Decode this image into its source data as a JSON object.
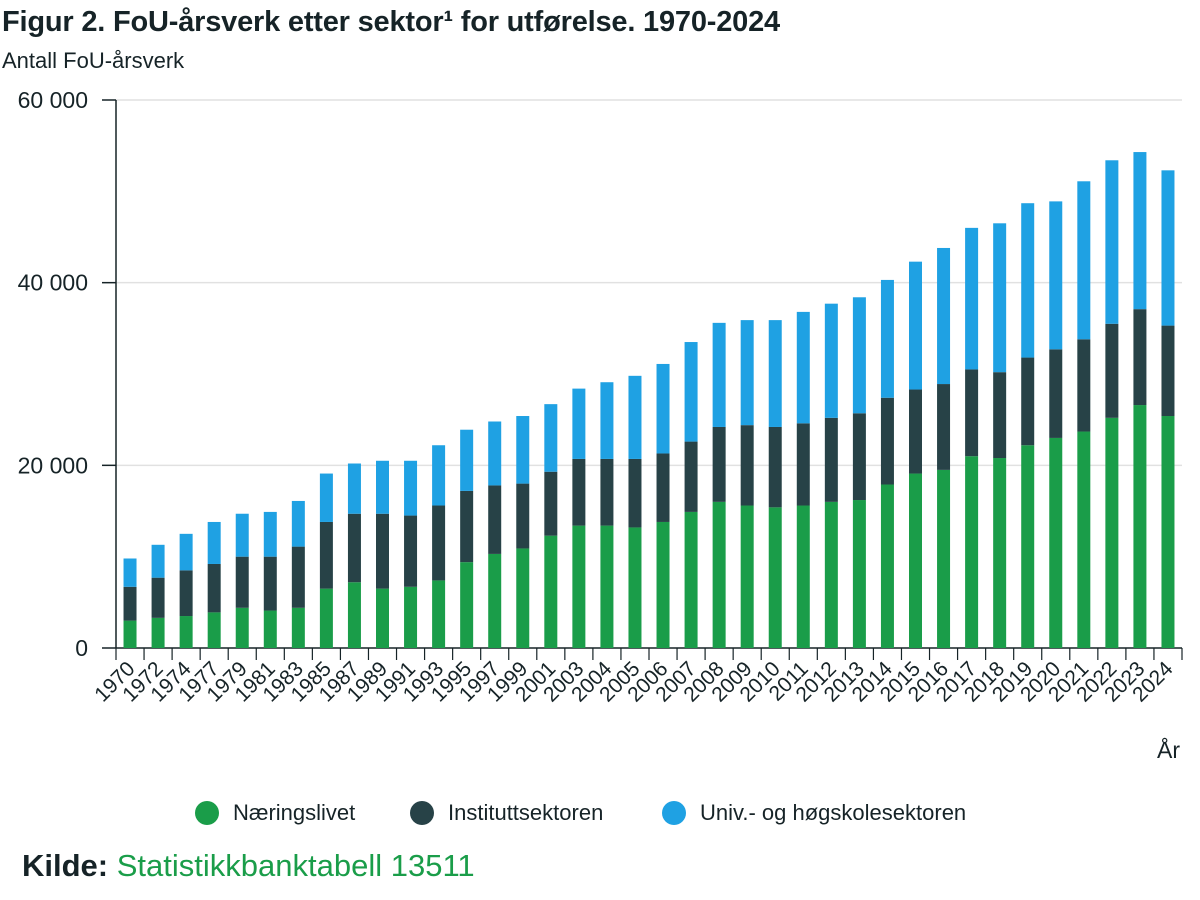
{
  "title": "Figur 2. FoU-årsverk etter sektor¹ for utførelse. 1970-2024",
  "subtitle": "Antall FoU-årsverk",
  "colors": {
    "naeringslivet": "#1a9d49",
    "institutt": "#274247",
    "univ": "#1fa1e3",
    "grid": "#e1e1e1",
    "axis": "#162327"
  },
  "legend": {
    "items": [
      {
        "label": "Næringslivet",
        "color": "#1a9d49"
      },
      {
        "label": "Instituttsektoren",
        "color": "#274247"
      },
      {
        "label": "Univ.- og høgskolesektoren",
        "color": "#1fa1e3"
      }
    ]
  },
  "source": {
    "label": "Kilde:",
    "link": "Statistikkbanktabell 13511"
  },
  "chart_data": {
    "type": "bar",
    "stacked": true,
    "title": "Figur 2. FoU-årsverk etter sektor¹ for utførelse. 1970-2024",
    "xlabel": "År",
    "ylabel": "Antall FoU-årsverk",
    "ylim": [
      0,
      60000
    ],
    "yticks": [
      0,
      20000,
      40000,
      60000
    ],
    "ytick_labels": [
      "0",
      "20 000",
      "40 000",
      "60 000"
    ],
    "grid": true,
    "legend_position": "bottom",
    "categories": [
      "1970",
      "1972",
      "1974",
      "1977",
      "1979",
      "1981",
      "1983",
      "1985",
      "1987",
      "1989",
      "1991",
      "1993",
      "1995",
      "1997",
      "1999",
      "2001",
      "2003",
      "2004",
      "2005",
      "2006",
      "2007",
      "2008",
      "2009",
      "2010",
      "2011",
      "2012",
      "2013",
      "2014",
      "2015",
      "2016",
      "2017",
      "2018",
      "2019",
      "2020",
      "2021",
      "2022",
      "2023",
      "2024"
    ],
    "series": [
      {
        "name": "Næringslivet",
        "values": [
          3000,
          3300,
          3500,
          3900,
          4400,
          4100,
          4400,
          6500,
          7200,
          6500,
          6700,
          7400,
          9400,
          10300,
          10900,
          12300,
          13400,
          13400,
          13200,
          13800,
          14900,
          16000,
          15600,
          15400,
          15600,
          16000,
          16200,
          17900,
          19100,
          19500,
          21000,
          20800,
          22200,
          23000,
          23700,
          25200,
          26600,
          25400
        ]
      },
      {
        "name": "Instituttsektoren",
        "values": [
          3700,
          4400,
          5000,
          5300,
          5600,
          5900,
          6700,
          7300,
          7500,
          8200,
          7800,
          8200,
          7800,
          7500,
          7100,
          7000,
          7300,
          7300,
          7500,
          7500,
          7700,
          8200,
          8800,
          8800,
          9000,
          9200,
          9500,
          9500,
          9200,
          9400,
          9500,
          9400,
          9600,
          9700,
          10100,
          10300,
          10500,
          9900
        ]
      },
      {
        "name": "Univ.- og høgskolesektoren",
        "values": [
          3100,
          3600,
          4000,
          4600,
          4700,
          4900,
          5000,
          5300,
          5500,
          5800,
          6000,
          6600,
          6700,
          7000,
          7400,
          7400,
          7700,
          8400,
          9100,
          9800,
          10900,
          11400,
          11500,
          11700,
          12200,
          12500,
          12700,
          12900,
          14000,
          14900,
          15500,
          16300,
          16900,
          16200,
          17300,
          17900,
          17200,
          17000
        ]
      }
    ]
  }
}
